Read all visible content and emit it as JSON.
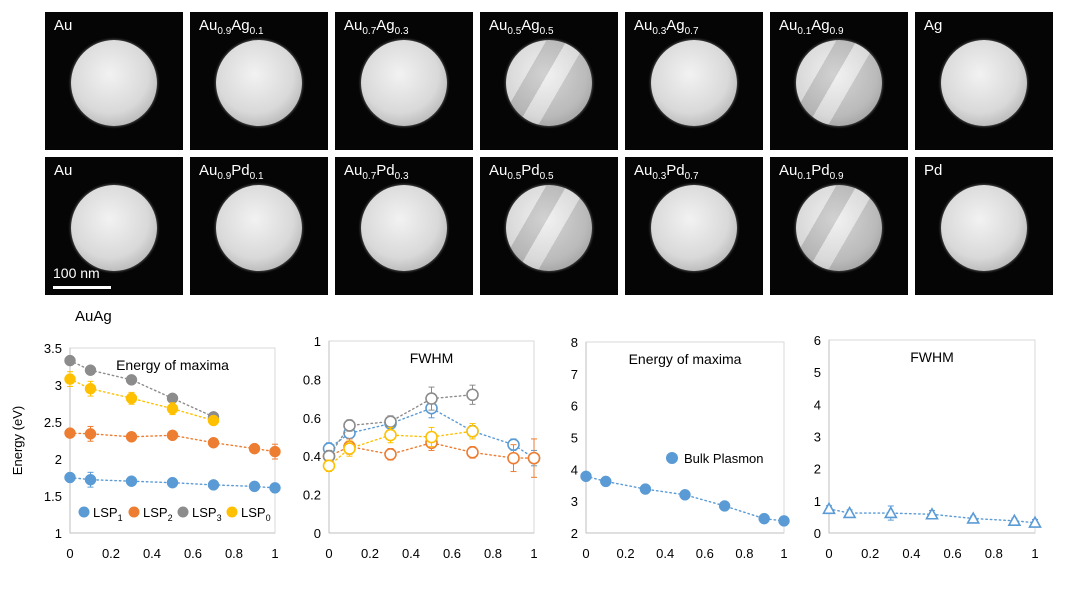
{
  "tiles": {
    "row1": [
      {
        "main": "Au",
        "parts": []
      },
      {
        "main": "Au",
        "parts": [
          [
            "0.9",
            "Ag"
          ],
          [
            "0.1",
            ""
          ]
        ]
      },
      {
        "main": "Au",
        "parts": [
          [
            "0.7",
            "Ag"
          ],
          [
            "0.3",
            ""
          ]
        ]
      },
      {
        "main": "Au",
        "parts": [
          [
            "0.5",
            "Ag"
          ],
          [
            "0.5",
            ""
          ]
        ]
      },
      {
        "main": "Au",
        "parts": [
          [
            "0.3",
            "Ag"
          ],
          [
            "0.7",
            ""
          ]
        ]
      },
      {
        "main": "Au",
        "parts": [
          [
            "0.1",
            "Ag"
          ],
          [
            "0.9",
            ""
          ]
        ]
      },
      {
        "main": "Ag",
        "parts": []
      }
    ],
    "row2": [
      {
        "main": "Au",
        "parts": []
      },
      {
        "main": "Au",
        "parts": [
          [
            "0.9",
            "Pd"
          ],
          [
            "0.1",
            ""
          ]
        ]
      },
      {
        "main": "Au",
        "parts": [
          [
            "0.7",
            "Pd"
          ],
          [
            "0.3",
            ""
          ]
        ]
      },
      {
        "main": "Au",
        "parts": [
          [
            "0.5",
            "Pd"
          ],
          [
            "0.5",
            ""
          ]
        ]
      },
      {
        "main": "Au",
        "parts": [
          [
            "0.3",
            "Pd"
          ],
          [
            "0.7",
            ""
          ]
        ]
      },
      {
        "main": "Au",
        "parts": [
          [
            "0.1",
            "Pd"
          ],
          [
            "0.9",
            ""
          ]
        ]
      },
      {
        "main": "Pd",
        "parts": []
      }
    ],
    "scale_bar": "100 nm"
  },
  "panel_label": "AuAg",
  "colors": {
    "LSP1": "#5b9bd5",
    "LSP2": "#ed7d31",
    "LSP3": "#8c8c8c",
    "LSP0": "#ffc000",
    "bulk": "#5b9bd5"
  },
  "chart_data": [
    {
      "type": "scatter",
      "title": "Energy of maxima",
      "ylabel": "Energy (eV)",
      "xlim": [
        0,
        1
      ],
      "ylim": [
        1,
        3.5
      ],
      "xticks": [
        "0",
        "0.2",
        "0.4",
        "0.6",
        "0.8",
        "1"
      ],
      "yticks": [
        "1",
        "1.5",
        "2",
        "2.5",
        "3",
        "3.5"
      ],
      "legend_position": "bottom-left",
      "series": [
        {
          "name": "LSP1",
          "name_main": "LSP",
          "name_sub": "1",
          "filled": true,
          "x": [
            0,
            0.1,
            0.3,
            0.5,
            0.7,
            0.9,
            1
          ],
          "y": [
            1.75,
            1.72,
            1.7,
            1.68,
            1.65,
            1.63,
            1.61
          ],
          "err": [
            0.05,
            0.1,
            0.04,
            0.04,
            0.04,
            0.06,
            0.06
          ]
        },
        {
          "name": "LSP2",
          "name_main": "LSP",
          "name_sub": "2",
          "filled": true,
          "x": [
            0,
            0.1,
            0.3,
            0.5,
            0.7,
            0.9,
            1
          ],
          "y": [
            2.35,
            2.34,
            2.3,
            2.32,
            2.22,
            2.14,
            2.1
          ],
          "err": [
            0.05,
            0.1,
            0.04,
            0.05,
            0.05,
            0.05,
            0.1
          ]
        },
        {
          "name": "LSP3",
          "name_main": "LSP",
          "name_sub": "3",
          "filled": true,
          "x": [
            0,
            0.1,
            0.3,
            0.5,
            0.7
          ],
          "y": [
            3.33,
            3.2,
            3.07,
            2.82,
            2.57
          ],
          "err": [
            0.05,
            0.04,
            0.04,
            0.04,
            0.04
          ]
        },
        {
          "name": "LSP0",
          "name_main": "LSP",
          "name_sub": "0",
          "filled": true,
          "x": [
            0,
            0.1,
            0.3,
            0.5,
            0.7
          ],
          "y": [
            3.08,
            2.95,
            2.82,
            2.68,
            2.52
          ],
          "err": [
            0.1,
            0.1,
            0.08,
            0.08,
            0.06
          ]
        }
      ]
    },
    {
      "type": "scatter",
      "title": "FWHM",
      "xlim": [
        0,
        1
      ],
      "ylim": [
        0,
        1
      ],
      "xticks": [
        "0",
        "0.2",
        "0.4",
        "0.6",
        "0.8",
        "1"
      ],
      "yticks": [
        "0",
        "0.2",
        "0.4",
        "0.6",
        "0.8",
        "1"
      ],
      "series": [
        {
          "name": "LSP1",
          "filled": false,
          "x": [
            0,
            0.1,
            0.3,
            0.5,
            0.7,
            0.9,
            1
          ],
          "y": [
            0.44,
            0.52,
            0.57,
            0.65,
            0.53,
            0.46,
            0.39
          ],
          "err": [
            0.03,
            0.06,
            0.04,
            0.05,
            0.03,
            0.03,
            0.04
          ]
        },
        {
          "name": "LSP2",
          "filled": false,
          "x": [
            0,
            0.1,
            0.3,
            0.5,
            0.7,
            0.9,
            1
          ],
          "y": [
            0.4,
            0.45,
            0.41,
            0.47,
            0.42,
            0.39,
            0.39
          ],
          "err": [
            0.03,
            0.04,
            0.03,
            0.04,
            0.03,
            0.07,
            0.1
          ]
        },
        {
          "name": "LSP3",
          "filled": false,
          "x": [
            0,
            0.1,
            0.3,
            0.5,
            0.7
          ],
          "y": [
            0.4,
            0.56,
            0.58,
            0.7,
            0.72
          ],
          "err": [
            0.03,
            0.03,
            0.03,
            0.06,
            0.05
          ]
        },
        {
          "name": "LSP0",
          "filled": false,
          "x": [
            0,
            0.1,
            0.3,
            0.5,
            0.7
          ],
          "y": [
            0.35,
            0.44,
            0.51,
            0.5,
            0.53
          ],
          "err": [
            0.03,
            0.04,
            0.04,
            0.05,
            0.04
          ]
        }
      ]
    },
    {
      "type": "scatter",
      "title": "Energy of maxima",
      "xlim": [
        0,
        1
      ],
      "ylim": [
        2,
        8
      ],
      "xticks": [
        "0",
        "0.2",
        "0.4",
        "0.6",
        "0.8",
        "1"
      ],
      "yticks": [
        "2",
        "3",
        "4",
        "5",
        "6",
        "7",
        "8"
      ],
      "legend_position": "center-right",
      "series": [
        {
          "name": "Bulk Plasmon",
          "filled": true,
          "x": [
            0,
            0.1,
            0.3,
            0.5,
            0.7,
            0.9,
            1
          ],
          "y": [
            3.78,
            3.62,
            3.38,
            3.2,
            2.85,
            2.45,
            2.38
          ],
          "err": [
            0.1,
            0.08,
            0.08,
            0.08,
            0.08,
            0.06,
            0.06
          ]
        }
      ]
    },
    {
      "type": "scatter",
      "title": "FWHM",
      "xlim": [
        0,
        1
      ],
      "ylim": [
        0,
        6
      ],
      "xticks": [
        "0",
        "0.2",
        "0.4",
        "0.6",
        "0.8",
        "1"
      ],
      "yticks": [
        "0",
        "1",
        "2",
        "3",
        "4",
        "5",
        "6"
      ],
      "series": [
        {
          "name": "Bulk Plasmon",
          "filled": false,
          "marker": "triangle",
          "x": [
            0,
            0.1,
            0.3,
            0.5,
            0.7,
            0.9,
            1
          ],
          "y": [
            0.75,
            0.62,
            0.62,
            0.58,
            0.45,
            0.38,
            0.32
          ],
          "err": [
            0.1,
            0.1,
            0.22,
            0.12,
            0.08,
            0.08,
            0.1
          ]
        }
      ]
    }
  ]
}
